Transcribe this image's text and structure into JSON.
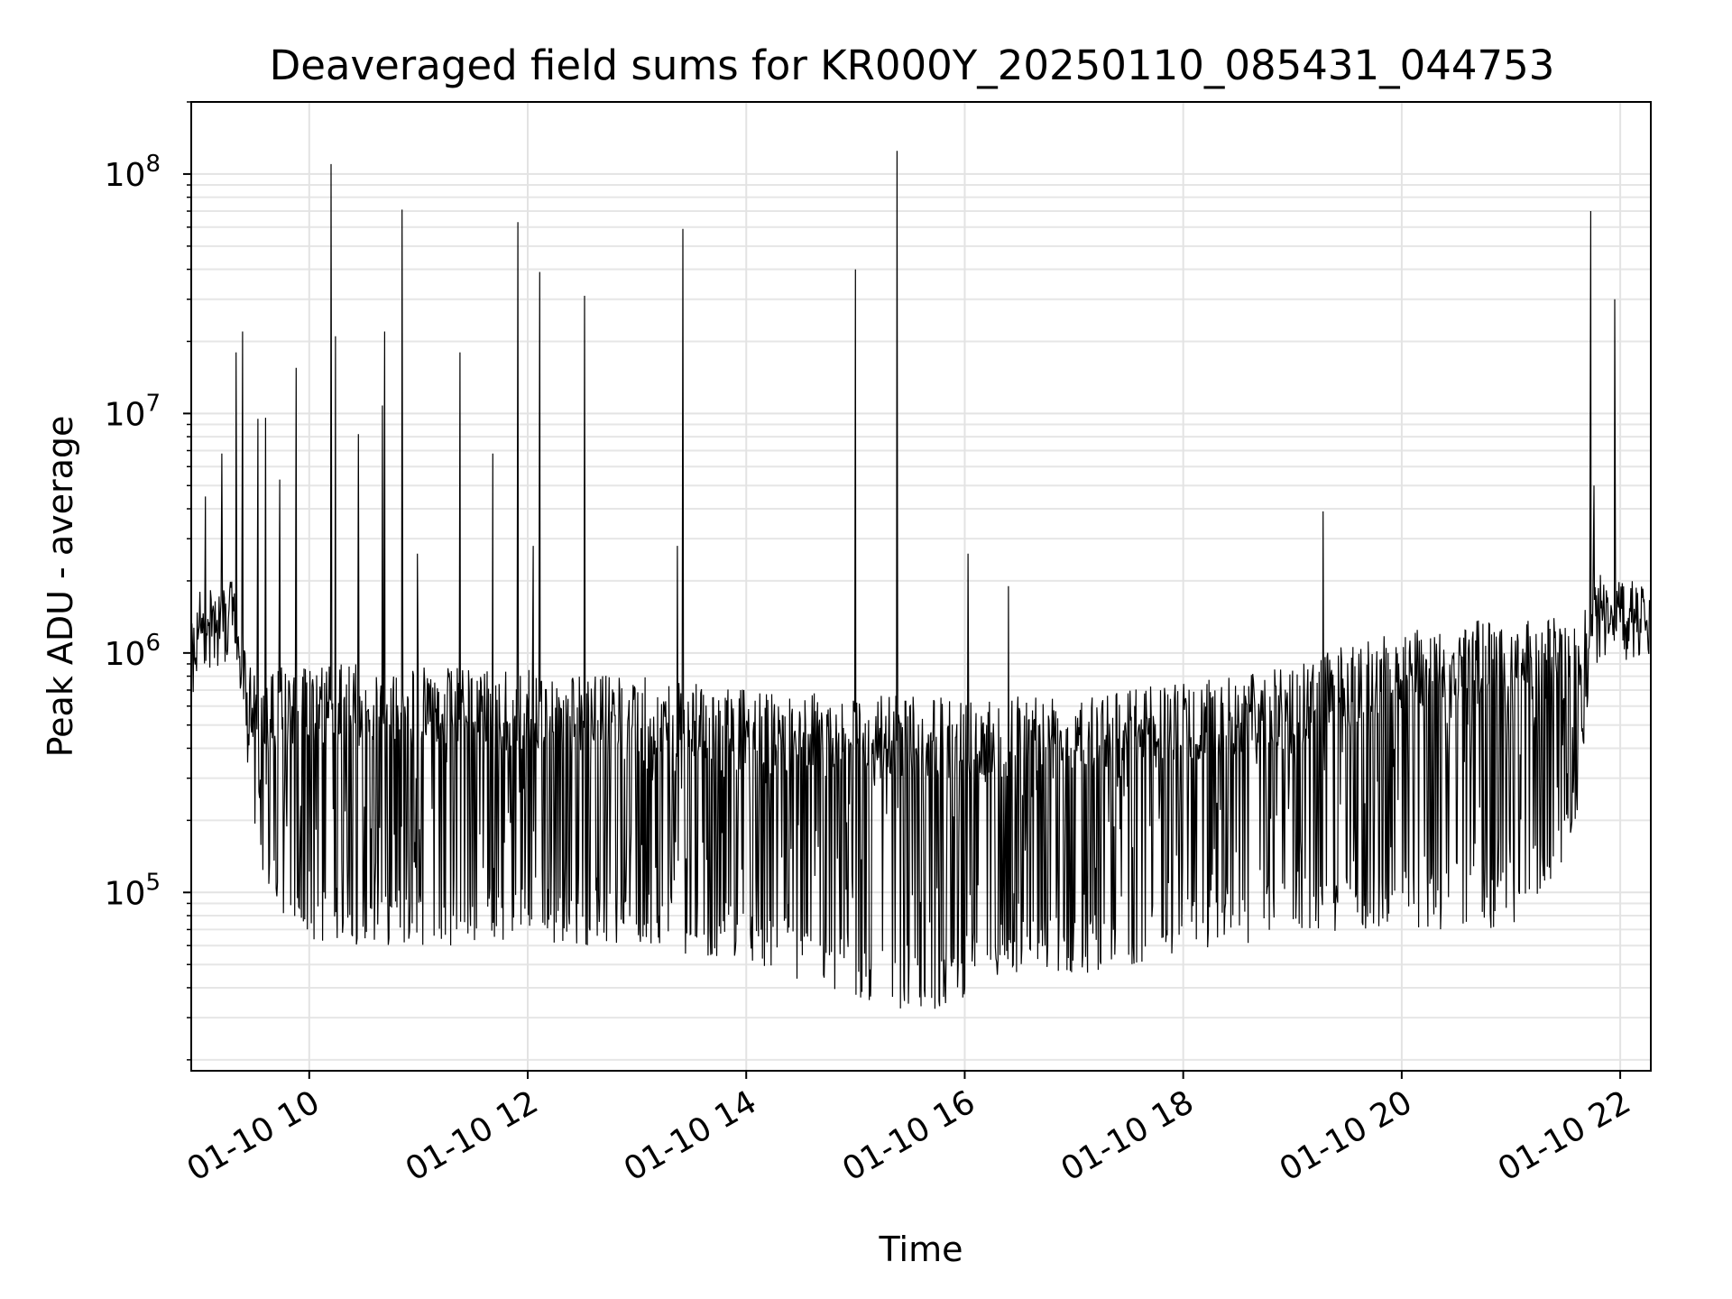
{
  "chart_data": {
    "type": "line",
    "title": "Deaveraged field sums for KR000Y_20250110_085431_044753",
    "xlabel": "Time",
    "ylabel": "Peak ADU - average",
    "yscale": "log",
    "xlim_hours": [
      8.92,
      22.28
    ],
    "ylim": [
      18000,
      200000000
    ],
    "grid": true,
    "line_color": "#000000",
    "x_ticks": [
      {
        "hour": 10,
        "label": "01-10 10"
      },
      {
        "hour": 12,
        "label": "01-10 12"
      },
      {
        "hour": 14,
        "label": "01-10 14"
      },
      {
        "hour": 16,
        "label": "01-10 16"
      },
      {
        "hour": 18,
        "label": "01-10 18"
      },
      {
        "hour": 20,
        "label": "01-10 20"
      },
      {
        "hour": 22,
        "label": "01-10 22"
      }
    ],
    "y_ticks": [
      {
        "value": 100000,
        "base": "10",
        "exp": "5"
      },
      {
        "value": 1000000,
        "base": "10",
        "exp": "6"
      },
      {
        "value": 10000000,
        "base": "10",
        "exp": "7"
      },
      {
        "value": 100000000,
        "base": "10",
        "exp": "8"
      }
    ],
    "envelope": [
      {
        "hour": 8.92,
        "high": 1300000,
        "low": 600000
      },
      {
        "hour": 9.0,
        "high": 1800000,
        "low": 1100000
      },
      {
        "hour": 9.3,
        "high": 2000000,
        "low": 1300000
      },
      {
        "hour": 9.45,
        "high": 900000,
        "low": 250000
      },
      {
        "hour": 9.7,
        "high": 900000,
        "low": 60000
      },
      {
        "hour": 10.3,
        "high": 900000,
        "low": 60000
      },
      {
        "hour": 11.0,
        "high": 900000,
        "low": 60000
      },
      {
        "hour": 12.0,
        "high": 850000,
        "low": 60000
      },
      {
        "hour": 13.0,
        "high": 800000,
        "low": 60000
      },
      {
        "hour": 14.0,
        "high": 700000,
        "low": 50000
      },
      {
        "hour": 15.0,
        "high": 680000,
        "low": 35000
      },
      {
        "hour": 15.7,
        "high": 650000,
        "low": 30000
      },
      {
        "hour": 16.3,
        "high": 700000,
        "low": 45000
      },
      {
        "hour": 17.0,
        "high": 720000,
        "low": 45000
      },
      {
        "hour": 18.0,
        "high": 750000,
        "low": 55000
      },
      {
        "hour": 19.0,
        "high": 900000,
        "low": 65000
      },
      {
        "hour": 20.0,
        "high": 1300000,
        "low": 70000
      },
      {
        "hour": 21.0,
        "high": 1400000,
        "low": 70000
      },
      {
        "hour": 21.6,
        "high": 1400000,
        "low": 150000
      },
      {
        "hour": 21.75,
        "high": 2000000,
        "low": 1200000
      },
      {
        "hour": 22.28,
        "high": 2000000,
        "low": 1200000
      }
    ],
    "spikes": [
      {
        "hour": 9.05,
        "value": 4500000
      },
      {
        "hour": 9.2,
        "value": 6800000
      },
      {
        "hour": 9.33,
        "value": 18000000
      },
      {
        "hour": 9.39,
        "value": 22000000
      },
      {
        "hour": 9.53,
        "value": 9500000
      },
      {
        "hour": 9.6,
        "value": 9600000
      },
      {
        "hour": 9.73,
        "value": 5300000
      },
      {
        "hour": 9.88,
        "value": 15500000
      },
      {
        "hour": 10.2,
        "value": 110000000
      },
      {
        "hour": 10.24,
        "value": 21000000
      },
      {
        "hour": 10.45,
        "value": 8200000
      },
      {
        "hour": 10.67,
        "value": 10800000
      },
      {
        "hour": 10.69,
        "value": 22000000
      },
      {
        "hour": 10.85,
        "value": 71000000
      },
      {
        "hour": 10.99,
        "value": 2600000
      },
      {
        "hour": 11.38,
        "value": 18000000
      },
      {
        "hour": 11.68,
        "value": 6800000
      },
      {
        "hour": 11.91,
        "value": 63000000
      },
      {
        "hour": 12.05,
        "value": 2800000
      },
      {
        "hour": 12.11,
        "value": 39000000
      },
      {
        "hour": 12.52,
        "value": 31000000
      },
      {
        "hour": 13.37,
        "value": 2800000
      },
      {
        "hour": 13.42,
        "value": 59000000
      },
      {
        "hour": 15.0,
        "value": 40000000
      },
      {
        "hour": 15.38,
        "value": 125000000
      },
      {
        "hour": 16.03,
        "value": 2600000
      },
      {
        "hour": 16.4,
        "value": 1900000
      },
      {
        "hour": 19.28,
        "value": 3900000
      },
      {
        "hour": 21.73,
        "value": 70000000
      },
      {
        "hour": 21.76,
        "value": 5000000
      },
      {
        "hour": 21.95,
        "value": 30000000
      }
    ]
  }
}
